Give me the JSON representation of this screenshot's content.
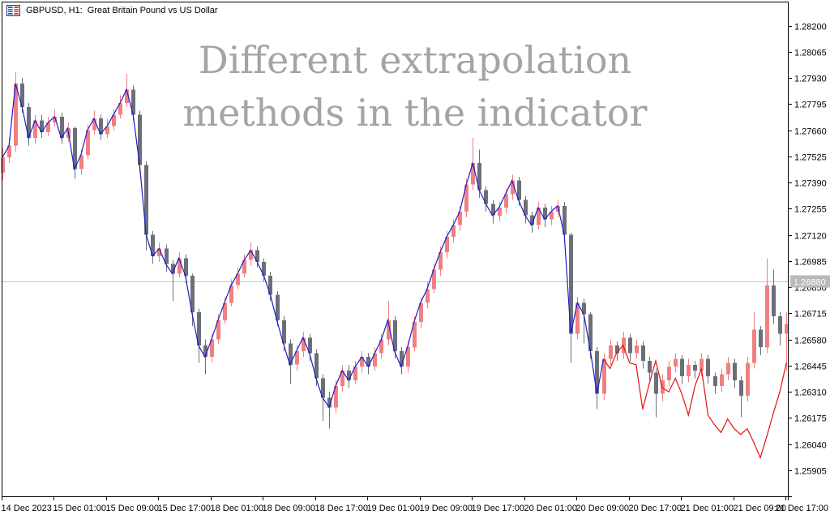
{
  "header": {
    "title": "GBPUSD, H1:  Great Britain Pound vs US Dollar"
  },
  "watermark": {
    "line1": "Different extrapolation",
    "line2": "methods in the indicator"
  },
  "chart_data": {
    "type": "candlestick",
    "symbol": "GBPUSD",
    "timeframe": "H1",
    "title": "GBPUSD, H1:  Great Britain Pound vs US Dollar",
    "legend_position": "none",
    "grid": false,
    "colors": {
      "bull": "#f08080",
      "bear": "#6b6f78",
      "indicator_history": "#1c1cce",
      "indicator_extrapolation": "#e01212",
      "bid_line": "#c8c8c8",
      "bid_label_bg": "#b9b9b9",
      "bid_label_text": "#ffffff",
      "axis": "#000000"
    },
    "y_axis": {
      "side": "right",
      "tick_step": 0.00135,
      "range": [
        1.25905,
        1.282
      ],
      "ticks": [
        "1.28200",
        "1.28065",
        "1.27930",
        "1.27795",
        "1.27660",
        "1.27525",
        "1.27390",
        "1.27255",
        "1.27120",
        "1.26985",
        "1.26850",
        "1.26715",
        "1.26580",
        "1.26445",
        "1.26310",
        "1.26175",
        "1.26040",
        "1.25905"
      ]
    },
    "x_axis": {
      "bars_per_label": 8,
      "labels": [
        "14 Dec 2023",
        "15 Dec 01:00",
        "15 Dec 09:00",
        "15 Dec 17:00",
        "18 Dec 01:00",
        "18 Dec 09:00",
        "18 Dec 17:00",
        "19 Dec 01:00",
        "19 Dec 09:00",
        "19 Dec 17:00",
        "20 Dec 01:00",
        "20 Dec 09:00",
        "20 Dec 17:00",
        "21 Dec 01:00",
        "21 Dec 09:00",
        "21 Dec 17:00"
      ]
    },
    "bid_price": 1.2688,
    "bid_price_label": "1.26880",
    "candles": [
      [
        1.2744,
        1.2757,
        1.274,
        1.2752
      ],
      [
        1.2752,
        1.2762,
        1.2749,
        1.2758
      ],
      [
        1.2758,
        1.2796,
        1.2755,
        1.279
      ],
      [
        1.279,
        1.2793,
        1.2775,
        1.2778
      ],
      [
        1.2778,
        1.278,
        1.2758,
        1.2762
      ],
      [
        1.2762,
        1.2774,
        1.2759,
        1.2771
      ],
      [
        1.2771,
        1.2774,
        1.2762,
        1.2765
      ],
      [
        1.2765,
        1.2773,
        1.2763,
        1.277
      ],
      [
        1.277,
        1.2777,
        1.2768,
        1.2773
      ],
      [
        1.2773,
        1.2775,
        1.2759,
        1.2762
      ],
      [
        1.2762,
        1.277,
        1.276,
        1.2767
      ],
      [
        1.2767,
        1.2768,
        1.2741,
        1.2746
      ],
      [
        1.2746,
        1.2756,
        1.2743,
        1.2753
      ],
      [
        1.2753,
        1.2769,
        1.2751,
        1.2766
      ],
      [
        1.2766,
        1.2776,
        1.2764,
        1.2772
      ],
      [
        1.2772,
        1.2774,
        1.2761,
        1.2764
      ],
      [
        1.2764,
        1.2772,
        1.2762,
        1.2768
      ],
      [
        1.2768,
        1.2777,
        1.2766,
        1.2774
      ],
      [
        1.2774,
        1.2784,
        1.2772,
        1.278
      ],
      [
        1.278,
        1.2795,
        1.2778,
        1.2787
      ],
      [
        1.2787,
        1.2789,
        1.2771,
        1.2774
      ],
      [
        1.2774,
        1.2776,
        1.2744,
        1.2748
      ],
      [
        1.2748,
        1.275,
        1.2704,
        1.2712
      ],
      [
        1.2712,
        1.2714,
        1.2697,
        1.2701
      ],
      [
        1.2701,
        1.2708,
        1.2698,
        1.2705
      ],
      [
        1.2705,
        1.2707,
        1.2693,
        1.2697
      ],
      [
        1.2697,
        1.2699,
        1.2678,
        1.2692
      ],
      [
        1.2692,
        1.2703,
        1.269,
        1.27
      ],
      [
        1.27,
        1.2702,
        1.2687,
        1.2691
      ],
      [
        1.2691,
        1.2692,
        1.2665,
        1.2672
      ],
      [
        1.2672,
        1.2674,
        1.2646,
        1.2655
      ],
      [
        1.2655,
        1.2658,
        1.264,
        1.2649
      ],
      [
        1.2649,
        1.2661,
        1.2646,
        1.2658
      ],
      [
        1.2658,
        1.2671,
        1.2656,
        1.2668
      ],
      [
        1.2668,
        1.268,
        1.2666,
        1.2677
      ],
      [
        1.2677,
        1.2689,
        1.2675,
        1.2686
      ],
      [
        1.2686,
        1.2695,
        1.2684,
        1.2692
      ],
      [
        1.2692,
        1.2702,
        1.269,
        1.2699
      ],
      [
        1.2699,
        1.2708,
        1.2696,
        1.2704
      ],
      [
        1.2704,
        1.2706,
        1.2695,
        1.2698
      ],
      [
        1.2698,
        1.27,
        1.2688,
        1.2691
      ],
      [
        1.2691,
        1.2693,
        1.2678,
        1.2681
      ],
      [
        1.2681,
        1.2683,
        1.2665,
        1.2668
      ],
      [
        1.2668,
        1.267,
        1.2652,
        1.2656
      ],
      [
        1.2656,
        1.2658,
        1.2635,
        1.2645
      ],
      [
        1.2645,
        1.2655,
        1.2642,
        1.2652
      ],
      [
        1.2652,
        1.2662,
        1.2649,
        1.2659
      ],
      [
        1.2659,
        1.2661,
        1.2647,
        1.2651
      ],
      [
        1.2651,
        1.2653,
        1.2634,
        1.2638
      ],
      [
        1.2638,
        1.264,
        1.2616,
        1.2628
      ],
      [
        1.2628,
        1.2631,
        1.2612,
        1.2623
      ],
      [
        1.2623,
        1.2637,
        1.262,
        1.2634
      ],
      [
        1.2634,
        1.2645,
        1.2631,
        1.2642
      ],
      [
        1.2642,
        1.2645,
        1.2633,
        1.2637
      ],
      [
        1.2637,
        1.2647,
        1.2635,
        1.2644
      ],
      [
        1.2644,
        1.2652,
        1.2641,
        1.2649
      ],
      [
        1.2649,
        1.2651,
        1.264,
        1.2644
      ],
      [
        1.2644,
        1.2654,
        1.2642,
        1.2651
      ],
      [
        1.2651,
        1.2661,
        1.2648,
        1.2658
      ],
      [
        1.2658,
        1.2678,
        1.2655,
        1.2668
      ],
      [
        1.2668,
        1.267,
        1.2648,
        1.2652
      ],
      [
        1.2652,
        1.2654,
        1.264,
        1.2644
      ],
      [
        1.2644,
        1.2657,
        1.2641,
        1.2654
      ],
      [
        1.2654,
        1.267,
        1.2652,
        1.2667
      ],
      [
        1.2667,
        1.268,
        1.2664,
        1.2677
      ],
      [
        1.2677,
        1.2688,
        1.2674,
        1.2684
      ],
      [
        1.2684,
        1.2697,
        1.2682,
        1.2694
      ],
      [
        1.2694,
        1.2706,
        1.2691,
        1.2703
      ],
      [
        1.2703,
        1.2714,
        1.27,
        1.2711
      ],
      [
        1.2711,
        1.272,
        1.2708,
        1.2717
      ],
      [
        1.2717,
        1.2727,
        1.2714,
        1.2724
      ],
      [
        1.2724,
        1.2741,
        1.2721,
        1.2738
      ],
      [
        1.2738,
        1.2762,
        1.2735,
        1.2749
      ],
      [
        1.2749,
        1.2756,
        1.2731,
        1.2735
      ],
      [
        1.2735,
        1.2737,
        1.2724,
        1.2728
      ],
      [
        1.2728,
        1.273,
        1.2718,
        1.2722
      ],
      [
        1.2722,
        1.2729,
        1.2719,
        1.2726
      ],
      [
        1.2726,
        1.2736,
        1.2723,
        1.2733
      ],
      [
        1.2733,
        1.2743,
        1.273,
        1.274
      ],
      [
        1.274,
        1.2742,
        1.2727,
        1.273
      ],
      [
        1.273,
        1.2732,
        1.2718,
        1.2722
      ],
      [
        1.2722,
        1.2724,
        1.2713,
        1.2717
      ],
      [
        1.2717,
        1.2729,
        1.2715,
        1.2726
      ],
      [
        1.2726,
        1.2728,
        1.2716,
        1.272
      ],
      [
        1.272,
        1.2727,
        1.2717,
        1.2724
      ],
      [
        1.2724,
        1.273,
        1.2721,
        1.2727
      ],
      [
        1.2727,
        1.2729,
        1.2708,
        1.2712
      ],
      [
        1.2712,
        1.2713,
        1.2646,
        1.2661
      ],
      [
        1.2661,
        1.268,
        1.2658,
        1.2677
      ],
      [
        1.2677,
        1.2679,
        1.2656,
        1.2671
      ],
      [
        1.2671,
        1.2672,
        1.2648,
        1.2652
      ],
      [
        1.2652,
        1.2654,
        1.2622,
        1.263
      ],
      [
        1.263,
        1.2651,
        1.2627,
        1.2648
      ],
      [
        1.2648,
        1.2658,
        1.2645,
        1.2655
      ],
      [
        1.2655,
        1.2657,
        1.2647,
        1.2651
      ],
      [
        1.2651,
        1.2662,
        1.2648,
        1.2659
      ],
      [
        1.2659,
        1.2661,
        1.2647,
        1.2651
      ],
      [
        1.2651,
        1.2658,
        1.2648,
        1.2655
      ],
      [
        1.2655,
        1.2657,
        1.2643,
        1.2647
      ],
      [
        1.2647,
        1.2649,
        1.2637,
        1.2641
      ],
      [
        1.2641,
        1.2643,
        1.2618,
        1.263
      ],
      [
        1.263,
        1.264,
        1.2626,
        1.2637
      ],
      [
        1.2637,
        1.2647,
        1.2634,
        1.2644
      ],
      [
        1.2644,
        1.2651,
        1.2641,
        1.2648
      ],
      [
        1.2648,
        1.265,
        1.2635,
        1.2639
      ],
      [
        1.2639,
        1.2648,
        1.2636,
        1.2645
      ],
      [
        1.2645,
        1.2647,
        1.2638,
        1.2642
      ],
      [
        1.2642,
        1.2651,
        1.2639,
        1.2648
      ],
      [
        1.2648,
        1.265,
        1.2635,
        1.2639
      ],
      [
        1.2639,
        1.2641,
        1.263,
        1.2634
      ],
      [
        1.2634,
        1.2643,
        1.2631,
        1.264
      ],
      [
        1.264,
        1.2649,
        1.2637,
        1.2646
      ],
      [
        1.2646,
        1.2648,
        1.2633,
        1.2637
      ],
      [
        1.2637,
        1.2639,
        1.2618,
        1.2629
      ],
      [
        1.2629,
        1.2649,
        1.2626,
        1.2646
      ],
      [
        1.2646,
        1.2672,
        1.2643,
        1.2663
      ],
      [
        1.2663,
        1.2665,
        1.265,
        1.2654
      ],
      [
        1.2654,
        1.27,
        1.2651,
        1.2686
      ],
      [
        1.2686,
        1.2694,
        1.2666,
        1.267
      ],
      [
        1.267,
        1.2672,
        1.2655,
        1.2661
      ],
      [
        1.2661,
        1.2672,
        1.2642,
        1.2666
      ]
    ],
    "series": [
      {
        "name": "indicator-line-history",
        "color": "#1c1cce",
        "start_index": 0,
        "values": [
          1.2752,
          1.2758,
          1.279,
          1.2778,
          1.2762,
          1.2771,
          1.2765,
          1.277,
          1.2773,
          1.2762,
          1.2767,
          1.2746,
          1.2753,
          1.2766,
          1.2772,
          1.2764,
          1.2768,
          1.2774,
          1.278,
          1.2787,
          1.2774,
          1.2748,
          1.2712,
          1.2701,
          1.2705,
          1.2697,
          1.2692,
          1.27,
          1.2691,
          1.2672,
          1.2655,
          1.2649,
          1.2658,
          1.2668,
          1.2677,
          1.2686,
          1.2692,
          1.2699,
          1.2704,
          1.2698,
          1.2691,
          1.2681,
          1.2668,
          1.2656,
          1.2645,
          1.2652,
          1.2659,
          1.2651,
          1.2638,
          1.2628,
          1.2623,
          1.2634,
          1.2642,
          1.2637,
          1.2644,
          1.2649,
          1.2644,
          1.2651,
          1.2658,
          1.2668,
          1.2652,
          1.2644,
          1.2654,
          1.2667,
          1.2677,
          1.2684,
          1.2694,
          1.2703,
          1.2711,
          1.2717,
          1.2724,
          1.2738,
          1.2749,
          1.2735,
          1.2728,
          1.2722,
          1.2726,
          1.2733,
          1.274,
          1.273,
          1.2722,
          1.2717,
          1.2726,
          1.272,
          1.2724,
          1.2727,
          1.2712,
          1.2661,
          1.2677,
          1.2671,
          1.2652,
          1.263,
          1.2648
        ]
      },
      {
        "name": "indicator-line-extrapolation",
        "color": "#e01212",
        "start_index": 92,
        "values": [
          1.2648,
          1.2643,
          1.2651,
          1.2655,
          1.2646,
          1.2645,
          1.2622,
          1.2635,
          1.2647,
          1.2633,
          1.2631,
          1.2638,
          1.263,
          1.2619,
          1.2634,
          1.2643,
          1.2619,
          1.2614,
          1.261,
          1.2617,
          1.2612,
          1.2609,
          1.2612,
          1.2605,
          1.2597,
          1.2608,
          1.262,
          1.2631,
          1.2646
        ]
      }
    ]
  }
}
